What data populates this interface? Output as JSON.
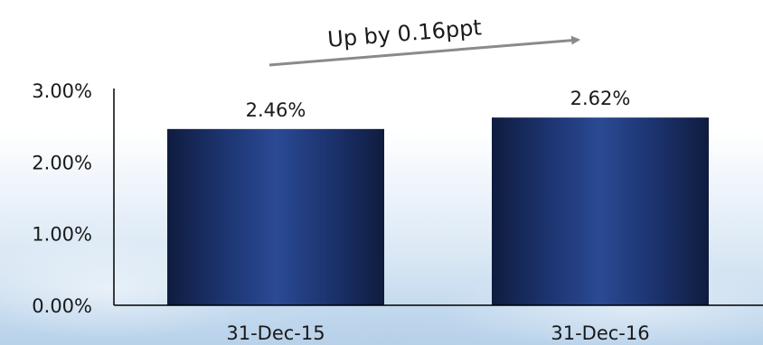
{
  "chart_data": {
    "type": "bar",
    "categories": [
      "31-Dec-15",
      "31-Dec-16"
    ],
    "values": [
      2.46,
      2.62
    ],
    "data_labels": [
      "2.46%",
      "2.62%"
    ],
    "y_ticks": [
      "0.00%",
      "1.00%",
      "2.00%",
      "3.00%"
    ],
    "ylim": [
      0,
      3
    ],
    "grid": false,
    "annotation": "Up by 0.16ppt",
    "colors": {
      "bar_dark": "#0f1c3f",
      "bar_light": "#2a4a94",
      "arrow": "#8a8a8a",
      "axis": "#000000"
    }
  }
}
